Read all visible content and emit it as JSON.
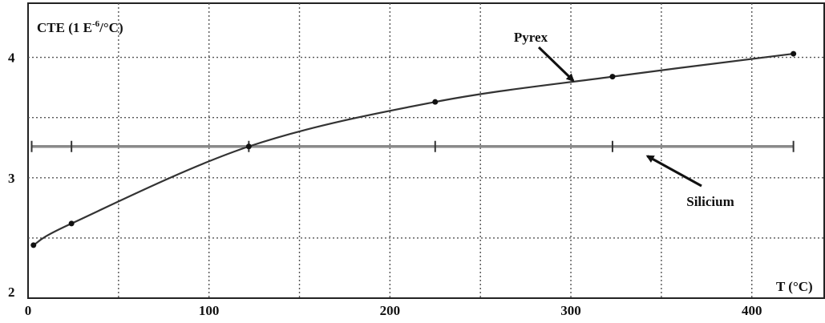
{
  "chart_data": {
    "type": "line",
    "title": "",
    "ylabel_main": "CTE (1 E",
    "ylabel_exp": "-6",
    "ylabel_tail": "/°C)",
    "xlabel": "T (°C)",
    "xlim": [
      0,
      440
    ],
    "ylim": [
      2,
      4.45
    ],
    "grid": true,
    "x_ticks": [
      0,
      100,
      200,
      300,
      400
    ],
    "y_ticks": [
      2,
      3,
      4
    ],
    "series": [
      {
        "name": "Pyrex",
        "color": "#333333",
        "x": [
          3,
          24,
          122,
          225,
          323,
          423
        ],
        "y": [
          2.44,
          2.62,
          3.26,
          3.63,
          3.84,
          4.03
        ]
      },
      {
        "name": "Silicium",
        "color": "#666666",
        "x": [
          2,
          24,
          122,
          225,
          323,
          423
        ],
        "y": [
          3.26,
          3.26,
          3.26,
          3.26,
          3.26,
          3.26
        ]
      }
    ],
    "annotations": [
      {
        "text": "Pyrex",
        "series": "Pyrex",
        "point": [
          300,
          3.78
        ]
      },
      {
        "text": "Silicium",
        "series": "Silicium",
        "point": [
          352,
          3.22
        ]
      }
    ]
  }
}
